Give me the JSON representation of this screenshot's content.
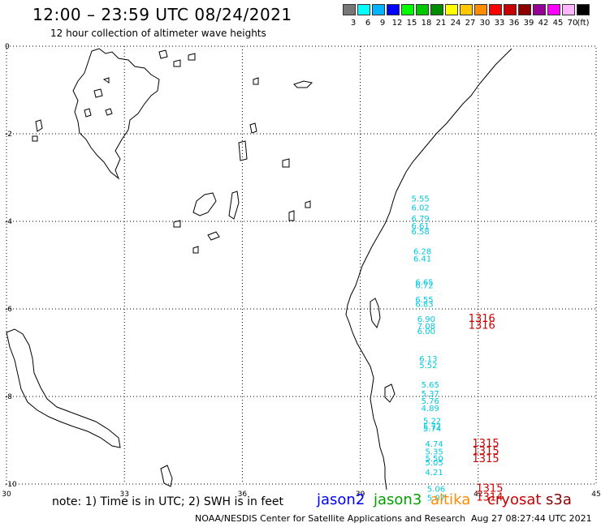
{
  "title": "12:00 – 23:59 UTC 08/24/2021",
  "subtitle": "12 hour collection of altimeter wave heights",
  "legend": {
    "unit": "(ft)",
    "bins": [
      {
        "color": "#777777",
        "label": "3"
      },
      {
        "color": "#00ffff",
        "label": "6"
      },
      {
        "color": "#00b4ff",
        "label": "9"
      },
      {
        "color": "#0000ff",
        "label": "12"
      },
      {
        "color": "#00ff00",
        "label": "15"
      },
      {
        "color": "#00c800",
        "label": "18"
      },
      {
        "color": "#008c00",
        "label": "21"
      },
      {
        "color": "#ffff00",
        "label": "24"
      },
      {
        "color": "#ffc800",
        "label": "27"
      },
      {
        "color": "#ff8c00",
        "label": "30"
      },
      {
        "color": "#ff0000",
        "label": "33"
      },
      {
        "color": "#c80000",
        "label": "36"
      },
      {
        "color": "#8c0000",
        "label": "39"
      },
      {
        "color": "#960096",
        "label": "42"
      },
      {
        "color": "#ff00ff",
        "label": "45"
      },
      {
        "color": "#ffb4ff",
        "label": "70"
      },
      {
        "color": "#000000",
        "label": ""
      }
    ]
  },
  "axes": {
    "lon_ticks": [
      "30",
      "33",
      "36",
      "39",
      "42",
      "45"
    ],
    "lat_ticks": [
      "0",
      "-2",
      "-4",
      "-6",
      "-8",
      "-10"
    ],
    "lon_range": [
      30,
      45
    ],
    "lat_range": [
      0,
      -10
    ]
  },
  "observations": [
    {
      "lon": 40.3,
      "lat": -3.55,
      "v": "5.55"
    },
    {
      "lon": 40.3,
      "lat": -3.75,
      "v": "6.02"
    },
    {
      "lon": 40.3,
      "lat": -4.0,
      "v": "6.79"
    },
    {
      "lon": 40.3,
      "lat": -4.17,
      "v": "6.61"
    },
    {
      "lon": 40.3,
      "lat": -4.3,
      "v": "6.58"
    },
    {
      "lon": 40.35,
      "lat": -4.75,
      "v": "6.28"
    },
    {
      "lon": 40.35,
      "lat": -4.92,
      "v": "6.41"
    },
    {
      "lon": 40.4,
      "lat": -5.45,
      "v": "6.65"
    },
    {
      "lon": 40.4,
      "lat": -5.53,
      "v": "6.72"
    },
    {
      "lon": 40.4,
      "lat": -5.85,
      "v": "6.55"
    },
    {
      "lon": 40.4,
      "lat": -5.95,
      "v": "6.83"
    },
    {
      "lon": 40.45,
      "lat": -6.3,
      "v": "6.90"
    },
    {
      "lon": 40.45,
      "lat": -6.45,
      "v": "7.08"
    },
    {
      "lon": 40.45,
      "lat": -6.57,
      "v": "6.00"
    },
    {
      "lon": 40.5,
      "lat": -7.2,
      "v": "6.13"
    },
    {
      "lon": 40.5,
      "lat": -7.35,
      "v": "5.52"
    },
    {
      "lon": 40.55,
      "lat": -7.8,
      "v": "5.65"
    },
    {
      "lon": 40.55,
      "lat": -8.0,
      "v": "5.37"
    },
    {
      "lon": 40.55,
      "lat": -8.17,
      "v": "5.76"
    },
    {
      "lon": 40.55,
      "lat": -8.33,
      "v": "4.89"
    },
    {
      "lon": 40.6,
      "lat": -8.62,
      "v": "5.22"
    },
    {
      "lon": 40.6,
      "lat": -8.75,
      "v": "5.72"
    },
    {
      "lon": 40.6,
      "lat": -8.8,
      "v": "5.74"
    },
    {
      "lon": 40.65,
      "lat": -9.15,
      "v": "4.74"
    },
    {
      "lon": 40.65,
      "lat": -9.32,
      "v": "5.35"
    },
    {
      "lon": 40.65,
      "lat": -9.48,
      "v": "5.50"
    },
    {
      "lon": 40.65,
      "lat": -9.57,
      "v": "5.05"
    },
    {
      "lon": 40.65,
      "lat": -9.8,
      "v": "4.21"
    },
    {
      "lon": 40.7,
      "lat": -10.18,
      "v": "5.06"
    },
    {
      "lon": 40.7,
      "lat": -10.38,
      "v": "5.07"
    }
  ],
  "cryosat_obs": [
    {
      "lon": 41.75,
      "lat": -6.3,
      "v": "1316"
    },
    {
      "lon": 41.75,
      "lat": -6.45,
      "v": "1316"
    },
    {
      "lon": 41.85,
      "lat": -9.15,
      "v": "1315"
    },
    {
      "lon": 41.85,
      "lat": -9.32,
      "v": "1315"
    },
    {
      "lon": 41.85,
      "lat": -9.5,
      "v": "1315"
    },
    {
      "lon": 41.95,
      "lat": -10.18,
      "v": "1315"
    },
    {
      "lon": 41.95,
      "lat": -10.38,
      "v": "1314"
    }
  ],
  "colors": {
    "obs": "#00c8dc",
    "cryosat": "#cc0000"
  },
  "note": "note: 1) Time is in UTC; 2) SWH is in feet",
  "satellites": [
    {
      "name": "jason2",
      "color": "#0000ff"
    },
    {
      "name": "jason3",
      "color": "#00a000"
    },
    {
      "name": "altika",
      "color": "#ff8c00"
    },
    {
      "name": "cryosat",
      "color": "#cc0000"
    },
    {
      "name": "s3a",
      "color": "#8c0000"
    }
  ],
  "credit": "NOAA/NESDIS Center for Satellite Applications and Research",
  "timestamp": "Aug 27 08:27:44 UTC 2021"
}
